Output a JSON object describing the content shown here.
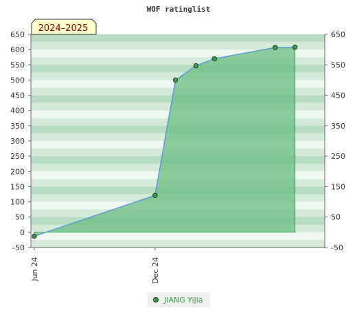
{
  "chart_data": {
    "type": "area",
    "title": "WOF ratinglist",
    "badge": "2024–2025",
    "x_tick_labels": [
      "Jun 24",
      "Dec 24"
    ],
    "x_tick_dates": [
      "2024-06-01",
      "2024-12-01"
    ],
    "x_range": [
      "2024-05-27",
      "2025-08-15"
    ],
    "ylim": [
      -50,
      650
    ],
    "yticks_left": [
      -50,
      0,
      50,
      100,
      150,
      200,
      250,
      300,
      350,
      400,
      450,
      500,
      550,
      600,
      650
    ],
    "yticks_right": [
      -50,
      50,
      150,
      250,
      350,
      450,
      550,
      650
    ],
    "series": [
      {
        "name": "JIANG Yijia",
        "x": [
          "2024-06-01",
          "2024-12-01",
          "2025-01-01",
          "2025-02-01",
          "2025-03-01",
          "2025-06-01",
          "2025-07-01"
        ],
        "values": [
          -13,
          121,
          500,
          547,
          570,
          607,
          608
        ]
      }
    ],
    "grid": true,
    "legend": "bottom",
    "colors": {
      "area_fill": "#6bbd80",
      "line": "#5b9bd5",
      "marker": "#3a9a4a",
      "marker_edge": "#1f3f1f",
      "band_dark": "#b8ddc2",
      "band_light": "#eef7f0",
      "legend_text": "#3a9a4a",
      "badge_bg": "#ffffcc",
      "badge_text": "#8b0000"
    }
  }
}
